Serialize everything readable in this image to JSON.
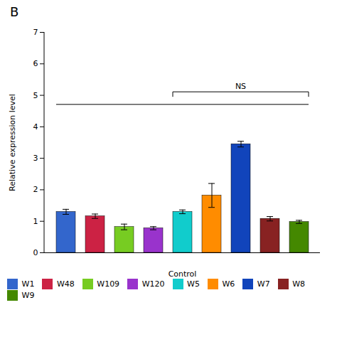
{
  "chart_data": {
    "type": "bar",
    "title": "B",
    "xlabel": "Control",
    "ylabel": "Relative expression level",
    "ylim": [
      0,
      7
    ],
    "yticks": [
      0,
      1,
      2,
      3,
      4,
      5,
      6,
      7
    ],
    "legend": "bottom",
    "series": [
      {
        "name": "W1",
        "color": "#3366CC",
        "values": [
          1.3
        ],
        "errors": [
          0.08
        ]
      },
      {
        "name": "W48",
        "color": "#CC2244",
        "values": [
          1.16
        ],
        "errors": [
          0.07
        ]
      },
      {
        "name": "W109",
        "color": "#77CC22",
        "values": [
          0.82
        ],
        "errors": [
          0.09
        ]
      },
      {
        "name": "W120",
        "color": "#9933CC",
        "values": [
          0.78
        ],
        "errors": [
          0.05
        ]
      },
      {
        "name": "W5",
        "color": "#11CCCC",
        "values": [
          1.3
        ],
        "errors": [
          0.06
        ]
      },
      {
        "name": "W6",
        "color": "#FF8C00",
        "values": [
          1.82
        ],
        "errors": [
          0.38
        ]
      },
      {
        "name": "W7",
        "color": "#1144BB",
        "values": [
          3.45
        ],
        "errors": [
          0.09
        ]
      },
      {
        "name": "W8",
        "color": "#882222",
        "values": [
          1.08
        ],
        "errors": [
          0.07
        ]
      },
      {
        "name": "W9",
        "color": "#448800",
        "values": [
          0.98
        ],
        "errors": [
          0.05
        ]
      }
    ],
    "annotations": [
      {
        "type": "bracket",
        "y": 4.7,
        "from": "W1",
        "to": "W9",
        "end_ticks": false
      },
      {
        "type": "bracket",
        "y": 5.1,
        "from": "W5",
        "to": "W9",
        "end_ticks": true,
        "text": "NS"
      }
    ]
  }
}
